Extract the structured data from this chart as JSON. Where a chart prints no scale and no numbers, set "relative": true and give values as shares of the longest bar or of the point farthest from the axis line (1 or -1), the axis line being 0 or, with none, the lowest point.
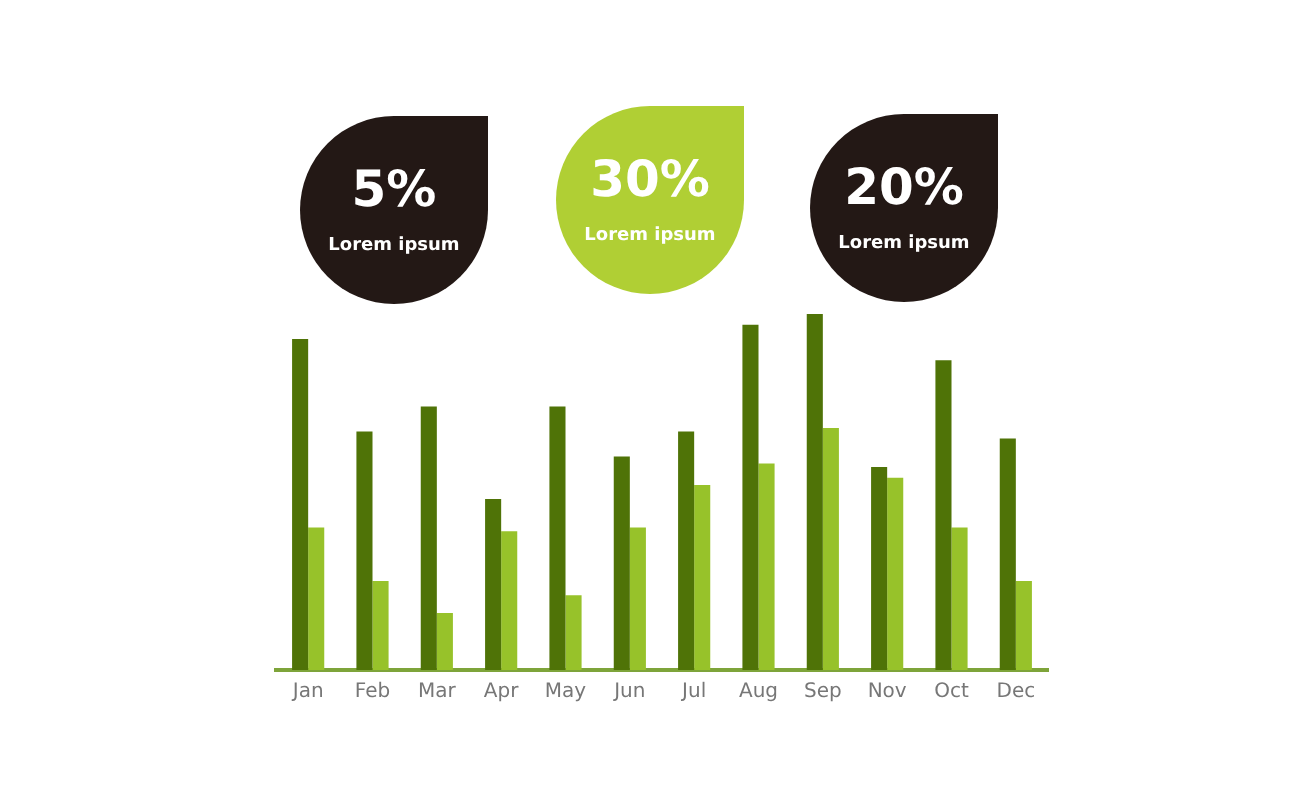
{
  "chart_data": {
    "type": "bar",
    "relative": true,
    "categories": [
      "Jan",
      "Feb",
      "Mar",
      "Apr",
      "May",
      "Jun",
      "Jul",
      "Aug",
      "Sep",
      "Nov",
      "Oct",
      "Dec"
    ],
    "series": [
      {
        "color": "#4f7307",
        "values": [
          0.93,
          0.67,
          0.74,
          0.48,
          0.74,
          0.6,
          0.67,
          0.97,
          1,
          0.57,
          0.87,
          0.65
        ]
      },
      {
        "color": "#97c22a",
        "values": [
          0.4,
          0.25,
          0.16,
          0.39,
          0.21,
          0.4,
          0.52,
          0.58,
          0.68,
          0.54,
          0.4,
          0.25
        ]
      }
    ],
    "annotations": [
      "5%",
      "Lorem ipsum",
      "30%",
      "Lorem ipsum",
      "20%",
      "Lorem ipsum"
    ],
    "grid": false,
    "legend": false
  }
}
